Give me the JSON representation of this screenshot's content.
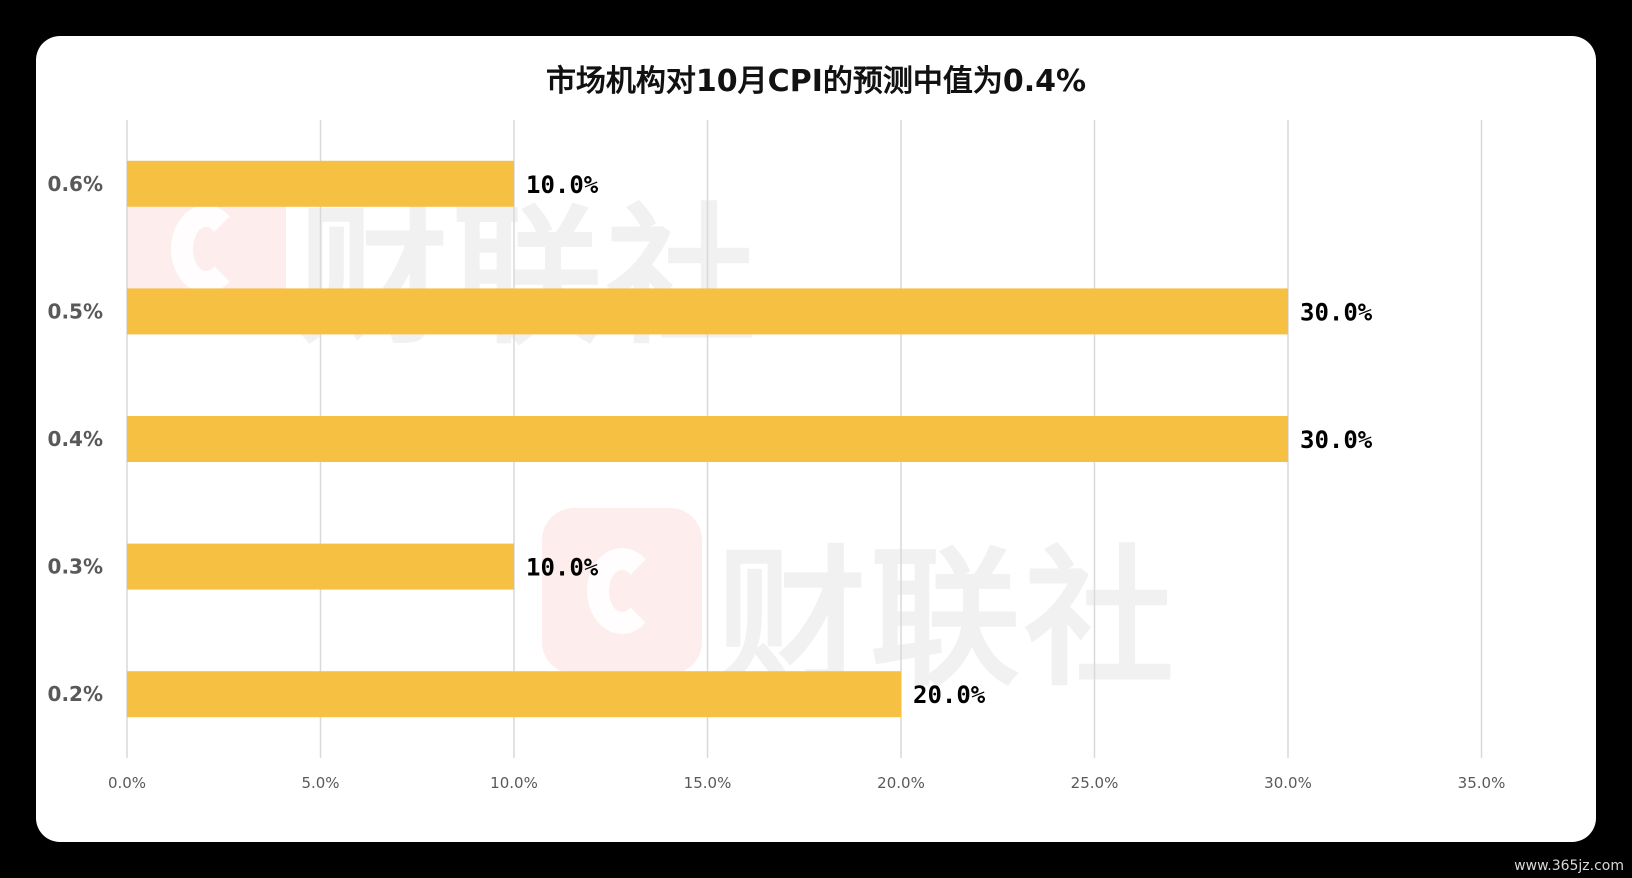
{
  "chart_data": {
    "type": "bar",
    "orientation": "horizontal",
    "title": "市场机构对10月CPI的预测中值为0.4%",
    "categories": [
      "0.6%",
      "0.5%",
      "0.4%",
      "0.3%",
      "0.2%"
    ],
    "values": [
      10.0,
      30.0,
      30.0,
      10.0,
      20.0
    ],
    "data_labels": [
      "10.0%",
      "30.0%",
      "30.0%",
      "10.0%",
      "20.0%"
    ],
    "x_ticks": [
      "0.0%",
      "5.0%",
      "10.0%",
      "15.0%",
      "20.0%",
      "25.0%",
      "30.0%",
      "35.0%"
    ],
    "xlim": [
      0,
      35
    ],
    "grid": "vertical",
    "bar_color": "#F6C142"
  },
  "watermark": {
    "text": "财联社"
  },
  "footer": {
    "site": "www.365jz.com"
  }
}
